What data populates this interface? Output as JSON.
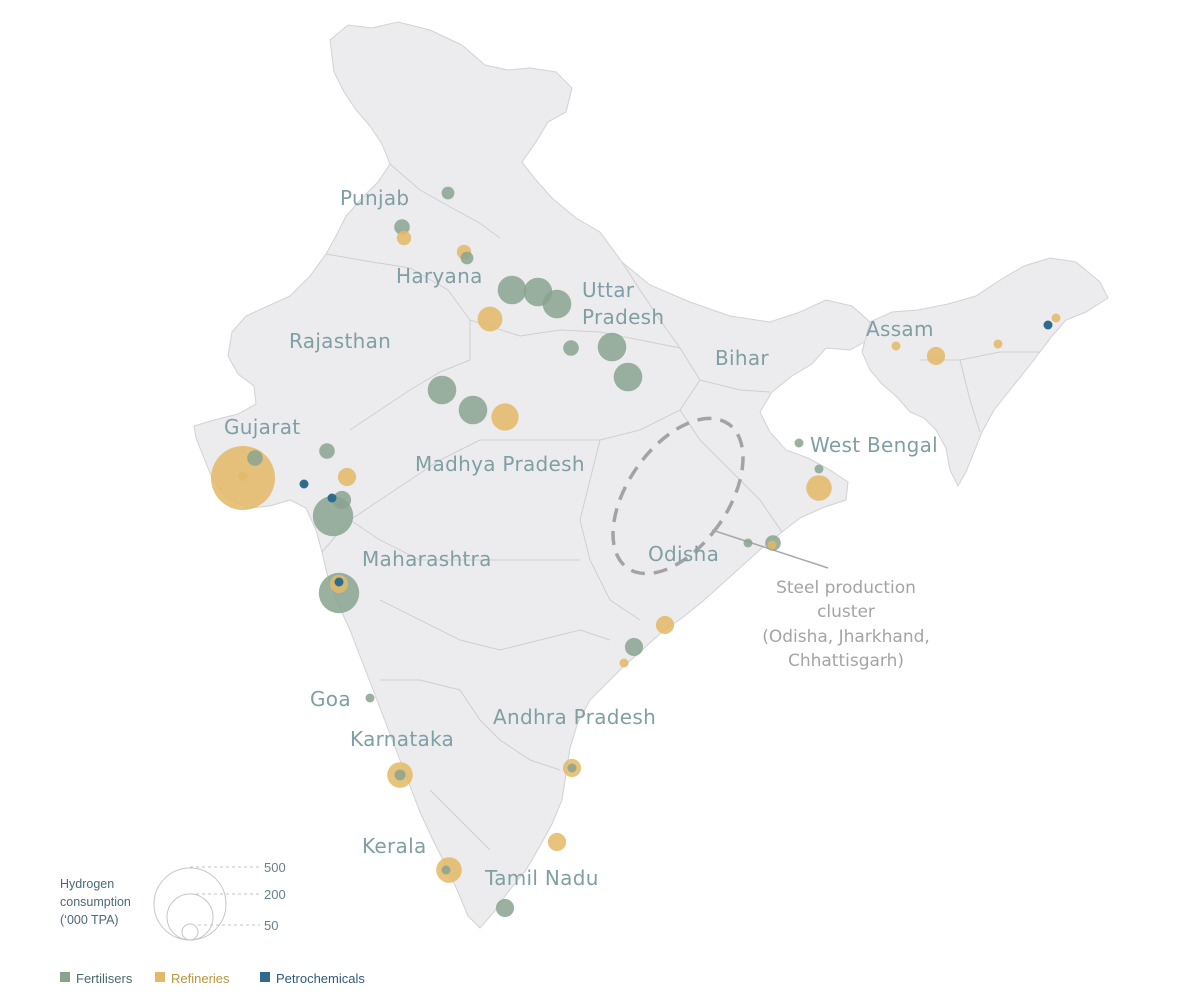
{
  "colors": {
    "land": "#ececee",
    "border": "#c9c9cc",
    "Fertilisers": "#8aa38f",
    "Refineries": "#e3b965",
    "Petrochemicals": "#2f6a8f",
    "label": "#7f9fa4"
  },
  "state_labels": [
    {
      "id": "punjab",
      "text": "Punjab"
    },
    {
      "id": "haryana",
      "text": "Haryana"
    },
    {
      "id": "uttar-pradesh-1",
      "text": "Uttar"
    },
    {
      "id": "uttar-pradesh-2",
      "text": "Pradesh"
    },
    {
      "id": "rajasthan",
      "text": "Rajasthan"
    },
    {
      "id": "bihar",
      "text": "Bihar"
    },
    {
      "id": "assam",
      "text": "Assam"
    },
    {
      "id": "gujarat",
      "text": "Gujarat"
    },
    {
      "id": "madhya-pradesh",
      "text": "Madhya Pradesh"
    },
    {
      "id": "west-bengal",
      "text": "West Bengal"
    },
    {
      "id": "maharashtra",
      "text": "Maharashtra"
    },
    {
      "id": "odisha",
      "text": "Odisha"
    },
    {
      "id": "goa",
      "text": "Goa"
    },
    {
      "id": "andhra-pradesh",
      "text": "Andhra Pradesh"
    },
    {
      "id": "karnataka",
      "text": "Karnataka"
    },
    {
      "id": "kerala",
      "text": "Kerala"
    },
    {
      "id": "tamil-nadu",
      "text": "Tamil Nadu"
    }
  ],
  "annotation": {
    "lines": [
      "Steel production",
      "cluster",
      "(Odisha, Jharkhand,",
      "Chhattisgarh)"
    ]
  },
  "bubbles": [
    {
      "category": "Fertilisers",
      "value": 20
    },
    {
      "category": "Fertilisers",
      "value": 30
    },
    {
      "category": "Refineries",
      "value": 25
    },
    {
      "category": "Refineries",
      "value": 25
    },
    {
      "category": "Fertilisers",
      "value": 20
    },
    {
      "category": "Fertilisers",
      "value": 100
    },
    {
      "category": "Fertilisers",
      "value": 100
    },
    {
      "category": "Fertilisers",
      "value": 100
    },
    {
      "category": "Refineries",
      "value": 75
    },
    {
      "category": "Fertilisers",
      "value": 30
    },
    {
      "category": "Fertilisers",
      "value": 100
    },
    {
      "category": "Fertilisers",
      "value": 100
    },
    {
      "category": "Fertilisers",
      "value": 100
    },
    {
      "category": "Fertilisers",
      "value": 100
    },
    {
      "category": "Refineries",
      "value": 90
    },
    {
      "category": "Fertilisers",
      "value": 30
    },
    {
      "category": "Refineries",
      "value": 500
    },
    {
      "category": "Fertilisers",
      "value": 30
    },
    {
      "category": "Refineries",
      "value": 10
    },
    {
      "category": "Refineries",
      "value": 40
    },
    {
      "category": "Petrochemicals",
      "value": 8
    },
    {
      "category": "Fertilisers",
      "value": 200
    },
    {
      "category": "Fertilisers",
      "value": 40
    },
    {
      "category": "Petrochemicals",
      "value": 8
    },
    {
      "category": "Fertilisers",
      "value": 200
    },
    {
      "category": "Refineries",
      "value": 40
    },
    {
      "category": "Petrochemicals",
      "value": 8
    },
    {
      "category": "Fertilisers",
      "value": 8
    },
    {
      "category": "Refineries",
      "value": 80
    },
    {
      "category": "Fertilisers",
      "value": 8
    },
    {
      "category": "Fertilisers",
      "value": 6
    },
    {
      "category": "Fertilisers",
      "value": 30
    },
    {
      "category": "Refineries",
      "value": 8
    },
    {
      "category": "Refineries",
      "value": 40
    },
    {
      "category": "Fertilisers",
      "value": 40
    },
    {
      "category": "Refineries",
      "value": 8
    },
    {
      "category": "Fertilisers",
      "value": 8
    },
    {
      "category": "Refineries",
      "value": 80
    },
    {
      "category": "Fertilisers",
      "value": 15
    },
    {
      "category": "Refineries",
      "value": 40
    },
    {
      "category": "Fertilisers",
      "value": 10
    },
    {
      "category": "Refineries",
      "value": 40
    },
    {
      "category": "Refineries",
      "value": 80
    },
    {
      "category": "Fertilisers",
      "value": 10
    },
    {
      "category": "Fertilisers",
      "value": 40
    },
    {
      "category": "Refineries",
      "value": 8
    },
    {
      "category": "Refineries",
      "value": 40
    },
    {
      "category": "Refineries",
      "value": 8
    },
    {
      "category": "Refineries",
      "value": 8
    },
    {
      "category": "Petrochemicals",
      "value": 8
    }
  ],
  "legend": {
    "size_title_lines": [
      "Hydrogen",
      "consumption",
      "(‘000 TPA)"
    ],
    "size_steps": [
      500,
      200,
      50
    ],
    "categories": [
      {
        "key": "Fertilisers",
        "label": "Fertilisers"
      },
      {
        "key": "Refineries",
        "label": "Refineries"
      },
      {
        "key": "Petrochemicals",
        "label": "Petrochemicals"
      }
    ]
  }
}
